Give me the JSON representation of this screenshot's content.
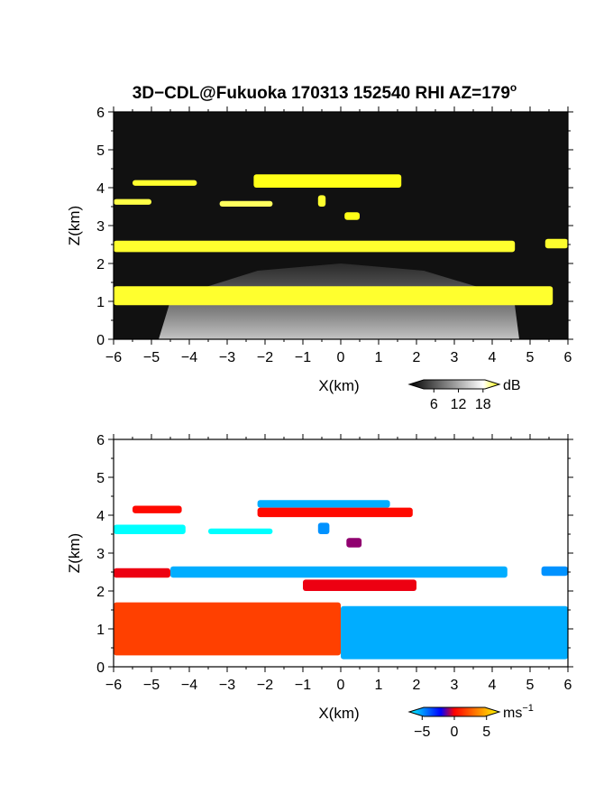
{
  "figure": {
    "title_main": "3D−CDL@Fukuoka 170313 152540 RHI AZ=179",
    "title_sup": "o"
  },
  "chart_data": [
    {
      "type": "heatmap",
      "panel": "reflectivity",
      "xlabel": "X(km)",
      "ylabel": "Z(km)",
      "xlim": [
        -6,
        6
      ],
      "ylim": [
        0,
        6
      ],
      "xticks": [
        -6,
        -5,
        -4,
        -3,
        -2,
        -1,
        0,
        1,
        2,
        3,
        4,
        5,
        6
      ],
      "yticks": [
        0,
        1,
        2,
        3,
        4,
        5,
        6
      ],
      "xtick_labels": [
        "−6",
        "−5",
        "−4",
        "−3",
        "−2",
        "−1",
        "0",
        "1",
        "2",
        "3",
        "4",
        "5",
        "6"
      ],
      "ytick_labels": [
        "0",
        "1",
        "2",
        "3",
        "4",
        "5",
        "6"
      ],
      "colorbar": {
        "unit": "dB",
        "range": [
          0,
          22
        ],
        "ticks": [
          6,
          12,
          18
        ],
        "tick_labels": [
          "6",
          "12",
          "18"
        ],
        "colors": [
          "#000000",
          "#ffffff",
          "#ffff00"
        ]
      },
      "layers": [
        {
          "x": [
            -5.5,
            -3.8
          ],
          "z": [
            4.05,
            4.2
          ],
          "value": 20
        },
        {
          "x": [
            -2.3,
            1.6
          ],
          "z": [
            4.0,
            4.35
          ],
          "value": 21
        },
        {
          "x": [
            -6.0,
            -5.0
          ],
          "z": [
            3.55,
            3.7
          ],
          "value": 19
        },
        {
          "x": [
            -3.2,
            -1.8
          ],
          "z": [
            3.5,
            3.65
          ],
          "value": 18
        },
        {
          "x": [
            -0.6,
            -0.4
          ],
          "z": [
            3.5,
            3.8
          ],
          "value": 20
        },
        {
          "x": [
            0.1,
            0.5
          ],
          "z": [
            3.15,
            3.35
          ],
          "value": 21
        },
        {
          "x": [
            -6.0,
            4.6
          ],
          "z": [
            2.3,
            2.6
          ],
          "value": 20
        },
        {
          "x": [
            5.4,
            6.0
          ],
          "z": [
            2.4,
            2.65
          ],
          "value": 20
        },
        {
          "x": [
            -6.0,
            5.6
          ],
          "z": [
            0.9,
            1.4
          ],
          "value": 20
        }
      ]
    },
    {
      "type": "heatmap",
      "panel": "doppler_velocity",
      "xlabel": "X(km)",
      "ylabel": "Z(km)",
      "xlim": [
        -6,
        6
      ],
      "ylim": [
        0,
        6
      ],
      "xticks": [
        -6,
        -5,
        -4,
        -3,
        -2,
        -1,
        0,
        1,
        2,
        3,
        4,
        5,
        6
      ],
      "yticks": [
        0,
        1,
        2,
        3,
        4,
        5,
        6
      ],
      "xtick_labels": [
        "−6",
        "−5",
        "−4",
        "−3",
        "−2",
        "−1",
        "0",
        "1",
        "2",
        "3",
        "4",
        "5",
        "6"
      ],
      "ytick_labels": [
        "0",
        "1",
        "2",
        "3",
        "4",
        "5",
        "6"
      ],
      "colorbar": {
        "unit": "ms",
        "unit_sup": "−1",
        "range": [
          -7,
          7
        ],
        "ticks": [
          -5,
          0,
          5
        ],
        "tick_labels": [
          "−5",
          "0",
          "5"
        ],
        "colors": [
          "#00ffff",
          "#0000ff",
          "#ff0000",
          "#ffff00"
        ]
      },
      "layers": [
        {
          "x": [
            -5.5,
            -4.2
          ],
          "z": [
            4.05,
            4.25
          ],
          "value": 2.5
        },
        {
          "x": [
            -2.2,
            1.3
          ],
          "z": [
            4.2,
            4.4
          ],
          "value": -5.5
        },
        {
          "x": [
            -2.2,
            1.9
          ],
          "z": [
            3.95,
            4.2
          ],
          "value": 2.5
        },
        {
          "x": [
            -6.0,
            -4.1
          ],
          "z": [
            3.5,
            3.75
          ],
          "value": -8
        },
        {
          "x": [
            -3.5,
            -1.8
          ],
          "z": [
            3.5,
            3.65
          ],
          "value": -8
        },
        {
          "x": [
            -0.6,
            -0.3
          ],
          "z": [
            3.5,
            3.8
          ],
          "value": -5
        },
        {
          "x": [
            0.15,
            0.55
          ],
          "z": [
            3.15,
            3.4
          ],
          "value": 0.3
        },
        {
          "x": [
            -6.0,
            -4.5
          ],
          "z": [
            2.35,
            2.6
          ],
          "value": 2
        },
        {
          "x": [
            -4.5,
            4.4
          ],
          "z": [
            2.35,
            2.65
          ],
          "value": -5.5
        },
        {
          "x": [
            -1.0,
            2.0
          ],
          "z": [
            2.0,
            2.3
          ],
          "value": 2
        },
        {
          "x": [
            5.3,
            6.0
          ],
          "z": [
            2.4,
            2.65
          ],
          "value": -5
        },
        {
          "x": [
            -6.0,
            0.0
          ],
          "z": [
            0.3,
            1.7
          ],
          "value": 3.5
        },
        {
          "x": [
            0.0,
            6.0
          ],
          "z": [
            0.2,
            1.6
          ],
          "value": -5.5
        }
      ]
    }
  ]
}
